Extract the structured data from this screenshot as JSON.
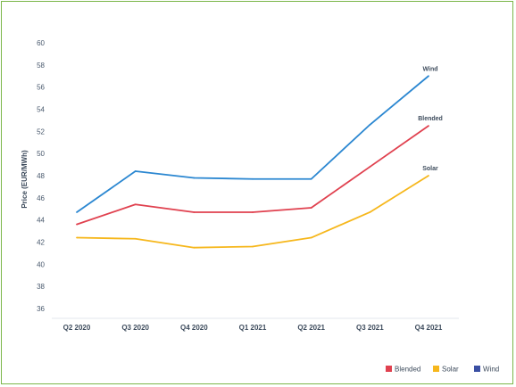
{
  "chart_data": {
    "type": "line",
    "title": "",
    "xlabel": "",
    "ylabel": "Price (EUR/MWh)",
    "categories": [
      "Q2 2020",
      "Q3 2020",
      "Q4 2020",
      "Q1 2021",
      "Q2 2021",
      "Q3 2021",
      "Q4 2021"
    ],
    "ylim": [
      35,
      60
    ],
    "yticks": [
      36,
      38,
      40,
      42,
      44,
      46,
      48,
      50,
      52,
      54,
      56,
      58,
      60
    ],
    "grid": false,
    "legend_position": "bottom-right",
    "series": [
      {
        "name": "Blended",
        "end_label": "Blended",
        "color": "#e0414f",
        "values": [
          43.6,
          45.4,
          44.7,
          44.7,
          45.1,
          48.8,
          52.5
        ]
      },
      {
        "name": "Solar",
        "end_label": "Solar",
        "color": "#f6b71c",
        "values": [
          42.4,
          42.3,
          41.5,
          41.6,
          42.4,
          44.7,
          48.0
        ]
      },
      {
        "name": "Wind",
        "end_label": "Wind",
        "color": "#2b87d1",
        "legend_color": "#3a4fa3",
        "values": [
          44.7,
          48.4,
          47.8,
          47.7,
          47.7,
          52.6,
          57.0
        ]
      }
    ]
  }
}
